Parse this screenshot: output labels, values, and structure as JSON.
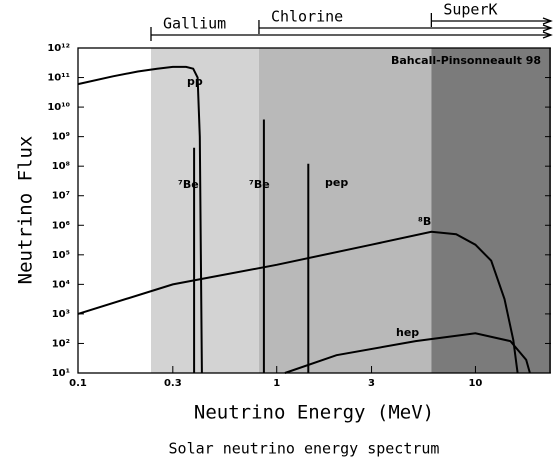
{
  "chart_data": {
    "type": "line",
    "title": "Solar neutrino energy spectrum",
    "annotation": "Bahcall-Pinsonneault 98",
    "x_label": "Neutrino Energy (MeV)",
    "y_label": "Neutrino Flux",
    "x_scale": "log",
    "y_scale": "log",
    "xlim": [
      0.1,
      24
    ],
    "ylim": [
      10,
      1000000000000
    ],
    "xticks": [
      0.1,
      0.3,
      1,
      3,
      10
    ],
    "yticks": [
      {
        "value": 10,
        "label": "10¹"
      },
      {
        "value": 100,
        "label": "10²"
      },
      {
        "value": 1000,
        "label": "10³"
      },
      {
        "value": 10000,
        "label": "10⁴"
      },
      {
        "value": 100000,
        "label": "10⁵"
      },
      {
        "value": 1000000,
        "label": "10⁶"
      },
      {
        "value": 10000000,
        "label": "10⁷"
      },
      {
        "value": 100000000,
        "label": "10⁸"
      },
      {
        "value": 1000000000,
        "label": "10⁹"
      },
      {
        "value": 10000000000,
        "label": "10¹⁰"
      },
      {
        "value": 100000000000,
        "label": "10¹¹"
      },
      {
        "value": 1000000000000,
        "label": "10¹²"
      }
    ],
    "regions": [
      {
        "name": "Gallium",
        "start": 0.233,
        "color": "#d3d3d3"
      },
      {
        "name": "Chlorine",
        "start": 0.814,
        "color": "#b9b9b9"
      },
      {
        "name": "SuperK",
        "start": 6,
        "color": "#7b7b7b"
      }
    ],
    "series": [
      {
        "name": "pp",
        "color": "#000000",
        "x": [
          0.1,
          0.15,
          0.2,
          0.25,
          0.3,
          0.35,
          0.38,
          0.4,
          0.41,
          0.42
        ],
        "values": [
          60000000000,
          110000000000,
          160000000000,
          200000000000,
          230000000000,
          230000000000,
          200000000000,
          100000000000,
          1000000000,
          10
        ]
      },
      {
        "name": "⁷Be",
        "color": "#000000",
        "x": [
          0.384,
          0.384
        ],
        "values": [
          10,
          420000000
        ]
      },
      {
        "name": "⁷Be",
        "color": "#000000",
        "x": [
          0.862,
          0.862
        ],
        "values": [
          10,
          3800000000
        ]
      },
      {
        "name": "pep",
        "color": "#000000",
        "x": [
          1.442,
          1.442
        ],
        "values": [
          10,
          120000000
        ]
      },
      {
        "name": "⁸B",
        "color": "#000000",
        "x": [
          0.1,
          0.3,
          1,
          3,
          6,
          8,
          10,
          12,
          14,
          15.5,
          16.3
        ],
        "values": [
          1000,
          10000,
          46000,
          220000,
          600000,
          500000,
          220000,
          63000,
          3200,
          130,
          10
        ]
      },
      {
        "name": "hep",
        "color": "#000000",
        "x": [
          1.1,
          2,
          5,
          10,
          15,
          18,
          18.8
        ],
        "values": [
          10,
          40,
          120,
          220,
          120,
          28,
          10
        ]
      }
    ]
  }
}
